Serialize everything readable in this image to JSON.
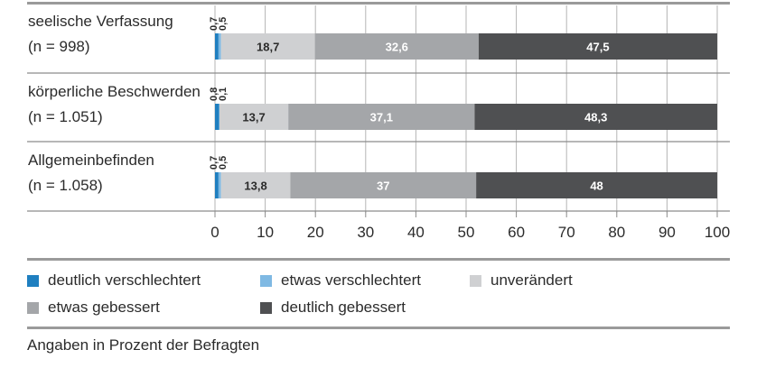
{
  "chart_data": {
    "type": "bar",
    "orientation": "horizontal",
    "stacked": true,
    "categories": [
      {
        "name": "seelische Verfassung",
        "n": "(n = 998)"
      },
      {
        "name": "körperliche Beschwerden",
        "n": "(n = 1.051)"
      },
      {
        "name": "Allgemeinbefinden",
        "n": "(n = 1.058)"
      }
    ],
    "series": [
      {
        "name": "deutlich verschlechtert",
        "color": "#1f7fc0",
        "values": [
          0.7,
          0.8,
          0.7
        ],
        "labels": [
          "0,7",
          "0,8",
          "0,7"
        ]
      },
      {
        "name": "etwas verschlechtert",
        "color": "#7fb9e3",
        "values": [
          0.5,
          0.1,
          0.5
        ],
        "labels": [
          "0,5",
          "0,1",
          "0,5"
        ]
      },
      {
        "name": "unverändert",
        "color": "#cfd0d2",
        "values": [
          18.7,
          13.7,
          13.8
        ],
        "labels": [
          "18,7",
          "13,7",
          "13,8"
        ]
      },
      {
        "name": "etwas gebessert",
        "color": "#a4a6a9",
        "values": [
          32.6,
          37.1,
          37
        ],
        "labels": [
          "32,6",
          "37,1",
          "37"
        ]
      },
      {
        "name": "deutlich gebessert",
        "color": "#4f5052",
        "values": [
          47.5,
          48.3,
          48
        ],
        "labels": [
          "47,5",
          "48,3",
          "48"
        ]
      }
    ],
    "xlim": [
      0,
      100
    ],
    "xticks": [
      "0",
      "10",
      "20",
      "30",
      "40",
      "50",
      "60",
      "70",
      "80",
      "90",
      "100"
    ],
    "grid": true,
    "legend_position": "bottom"
  },
  "legend_rows": [
    [
      "deutlich verschlechtert",
      "etwas verschlechtert",
      "unverändert"
    ],
    [
      "etwas gebessert",
      "deutlich gebessert"
    ]
  ],
  "note": "Angaben in Prozent der Befragten"
}
